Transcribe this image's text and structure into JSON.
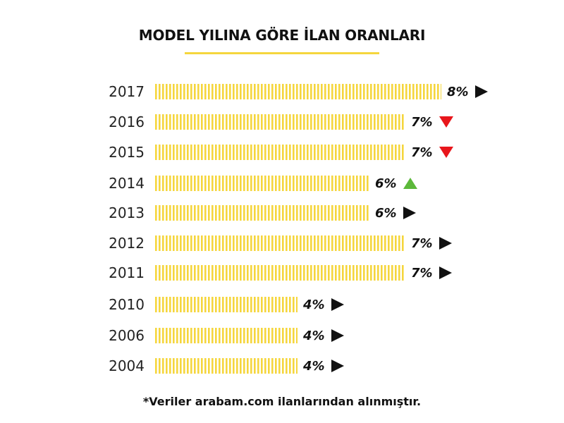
{
  "chart_data": {
    "type": "bar",
    "orientation": "horizontal",
    "title": "MODEL YILINA GÖRE İLAN ORANLARI",
    "categories": [
      "2017",
      "2016",
      "2015",
      "2014",
      "2013",
      "2012",
      "2011",
      "2010",
      "2006",
      "2004"
    ],
    "values": [
      8,
      7,
      7,
      6,
      6,
      7,
      7,
      4,
      4,
      4
    ],
    "value_labels": [
      "8%",
      "7%",
      "7%",
      "6%",
      "6%",
      "7%",
      "7%",
      "4%",
      "4%",
      "4%"
    ],
    "trends": [
      "neutral",
      "down",
      "down",
      "up",
      "neutral",
      "neutral",
      "neutral",
      "neutral",
      "neutral",
      "neutral"
    ],
    "xlim": [
      0,
      8
    ],
    "grid": false,
    "legend": "none"
  },
  "footnote": "*Veriler arabam.com ilanlarından alınmıştır.",
  "colors": {
    "bar": "#f5d63d",
    "underline": "#f5d63d",
    "trend_up": "#5cb83a",
    "trend_down": "#e8161b",
    "trend_neutral": "#111111"
  }
}
